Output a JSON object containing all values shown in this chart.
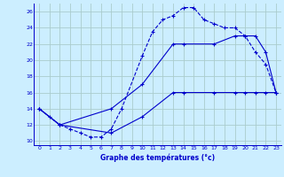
{
  "title": "Graphe des températures (°c)",
  "background_color": "#cceeff",
  "grid_color": "#aacccc",
  "line_color": "#0000cc",
  "xlim": [
    -0.5,
    23.5
  ],
  "ylim": [
    9.5,
    27
  ],
  "xticks": [
    0,
    1,
    2,
    3,
    4,
    5,
    6,
    7,
    8,
    9,
    10,
    11,
    12,
    13,
    14,
    15,
    16,
    17,
    18,
    19,
    20,
    21,
    22,
    23
  ],
  "yticks": [
    10,
    12,
    14,
    16,
    18,
    20,
    22,
    24,
    26
  ],
  "line1_x": [
    0,
    1,
    2,
    3,
    4,
    5,
    6,
    7,
    8,
    10,
    11,
    12,
    13,
    14,
    15,
    16,
    17,
    18,
    19,
    20,
    21,
    22,
    23
  ],
  "line1_y": [
    14,
    13,
    12,
    11.5,
    11,
    10.5,
    10.5,
    11.5,
    14,
    20.5,
    23.5,
    25,
    25.5,
    26.5,
    26.5,
    25,
    24.5,
    24,
    24,
    23,
    21,
    19.5,
    16
  ],
  "line2_x": [
    0,
    2,
    7,
    10,
    13,
    14,
    17,
    19,
    20,
    21,
    22,
    23
  ],
  "line2_y": [
    14,
    12,
    14,
    17,
    22,
    22,
    22,
    23,
    23,
    23,
    21,
    16
  ],
  "line3_x": [
    0,
    2,
    7,
    10,
    13,
    14,
    17,
    19,
    20,
    21,
    22,
    23
  ],
  "line3_y": [
    14,
    12,
    11,
    13,
    16,
    16,
    16,
    16,
    16,
    16,
    16,
    16
  ]
}
